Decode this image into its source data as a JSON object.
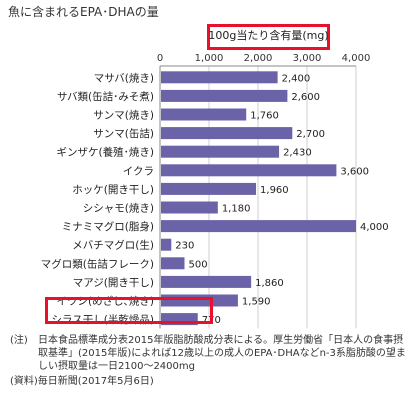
{
  "chart_data": {
    "type": "bar",
    "orientation": "horizontal",
    "title": "魚に含まれるEPA･DHAの量",
    "unit_label": "100g当たり含有量(mg)",
    "categories": [
      "マサバ(焼き)",
      "サバ類(缶詰･みそ煮)",
      "サンマ(焼き)",
      "サンマ(缶詰)",
      "ギンザケ(養殖･焼き)",
      "イクラ",
      "ホッケ(開き干し)",
      "シシャモ(焼き)",
      "ミナミマグロ(脂身)",
      "メバチマグロ(生)",
      "マグロ類(缶詰フレーク)",
      "マアジ(開き干し)",
      "イワシ(めざし､焼き)",
      "シラス干し(半乾燥品)"
    ],
    "values": [
      2400,
      2600,
      1760,
      2700,
      2430,
      3600,
      1960,
      1180,
      4000,
      230,
      500,
      1860,
      1590,
      770
    ],
    "value_labels": [
      "2,400",
      "2,600",
      "1,760",
      "2,700",
      "2,430",
      "3,600",
      "1,960",
      "1,180",
      "4,000",
      "230",
      "500",
      "1,860",
      "1,590",
      "770"
    ],
    "xlim": [
      0,
      4000
    ],
    "x_ticks": [
      0,
      1000,
      2000,
      3000,
      4000
    ],
    "x_tick_labels": [
      "0",
      "1,000",
      "2,000",
      "3,000",
      "4,000"
    ],
    "x_axis_position": "top",
    "grid": true,
    "highlighted": [
      "unit_label",
      "シラス干し(半乾燥品)"
    ],
    "colors": {
      "bar": "#6b63a8",
      "highlight": "#e8102a",
      "grid": "#cfcfcf",
      "axis": "#888888"
    }
  },
  "notes": {
    "note_tag": "(注)",
    "note_text": "日本食品標準成分表2015年版脂肪酸成分表による。厚生労働省「日本人の食事摂取基準」(2015年版)によれば12歳以上の成人のEPA･DHAなどn-3系脂肪酸の望ましい摂取量は一日2100～2400mg",
    "source": "(資料)毎日新聞(2017年5月6日)"
  }
}
